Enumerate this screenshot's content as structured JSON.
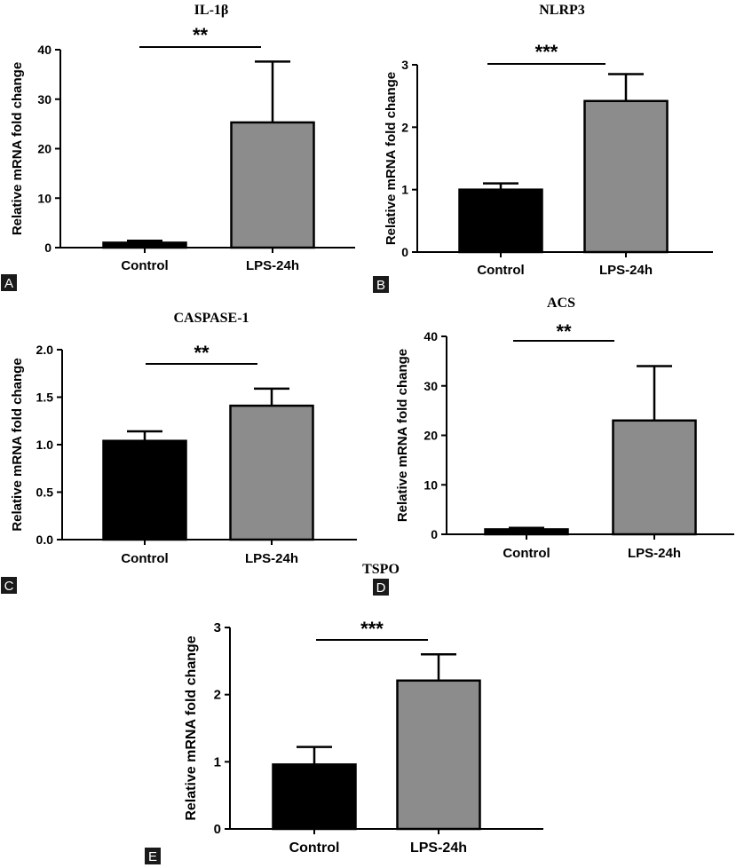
{
  "chart_data": [
    {
      "type": "bar",
      "panel": "A",
      "title": "IL-1β",
      "ylabel": "Relative mRNA fold change",
      "categories": [
        "Control",
        "LPS-24h"
      ],
      "values": [
        1.0,
        25.3
      ],
      "errors": [
        0.4,
        12.3
      ],
      "bar_colors": [
        "#000000",
        "#8c8c8c"
      ],
      "ylim": [
        0,
        40
      ],
      "yticks": [
        "0",
        "10",
        "20",
        "30",
        "40"
      ],
      "significance": "**"
    },
    {
      "type": "bar",
      "panel": "B",
      "title": "NLRP3",
      "ylabel": "Relative mRNA fold change",
      "categories": [
        "Control",
        "LPS-24h"
      ],
      "values": [
        1.0,
        2.42
      ],
      "errors": [
        0.1,
        0.43
      ],
      "bar_colors": [
        "#000000",
        "#8c8c8c"
      ],
      "ylim": [
        0,
        3
      ],
      "yticks": [
        "0",
        "1",
        "2",
        "3"
      ],
      "significance": "***"
    },
    {
      "type": "bar",
      "panel": "C",
      "title": "CASPASE-1",
      "ylabel": "Relative mRNA fold change",
      "categories": [
        "Control",
        "LPS-24h"
      ],
      "values": [
        1.04,
        1.41
      ],
      "errors": [
        0.1,
        0.18
      ],
      "bar_colors": [
        "#000000",
        "#8c8c8c"
      ],
      "ylim": [
        0,
        2.0
      ],
      "yticks": [
        "0.0",
        "0.5",
        "1.0",
        "1.5",
        "2.0"
      ],
      "significance": "**"
    },
    {
      "type": "bar",
      "panel": "D",
      "title": "ACS",
      "ylabel": "Relative mRNA fold change",
      "categories": [
        "Control",
        "LPS-24h"
      ],
      "values": [
        1.0,
        23.0
      ],
      "errors": [
        0.3,
        11.0
      ],
      "bar_colors": [
        "#000000",
        "#8c8c8c"
      ],
      "ylim": [
        0,
        40
      ],
      "yticks": [
        "0",
        "10",
        "20",
        "30",
        "40"
      ],
      "significance": "**"
    },
    {
      "type": "bar",
      "panel": "E",
      "title": "TSPO",
      "ylabel": "Relative mRNA fold change",
      "categories": [
        "Control",
        "LPS-24h"
      ],
      "values": [
        0.96,
        2.21
      ],
      "errors": [
        0.26,
        0.39
      ],
      "bar_colors": [
        "#000000",
        "#8c8c8c"
      ],
      "ylim": [
        0,
        3
      ],
      "yticks": [
        "0",
        "1",
        "2",
        "3"
      ],
      "significance": "***"
    }
  ]
}
